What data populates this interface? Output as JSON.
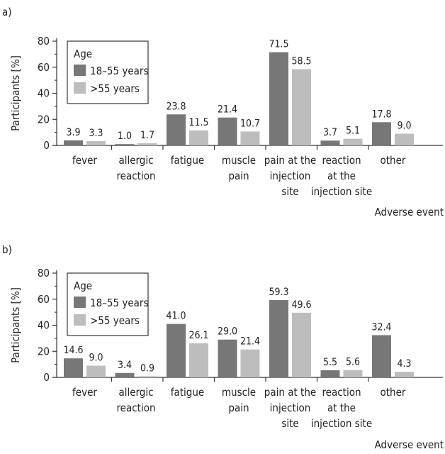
{
  "colors": {
    "series_dark": "#777777",
    "series_light": "#bdbdbd",
    "axis": "#333333"
  },
  "chart_data": [
    {
      "type": "bar",
      "panel_label": "a)",
      "categories": [
        [
          "fever"
        ],
        [
          "allergic",
          "reaction"
        ],
        [
          "fatigue"
        ],
        [
          "muscle",
          "pain"
        ],
        [
          "pain at the",
          "injection",
          "site"
        ],
        [
          "reaction",
          "at the",
          "injection site"
        ],
        [
          "other"
        ]
      ],
      "series": [
        {
          "name": "18–55 years",
          "values": [
            3.9,
            1.0,
            23.8,
            21.4,
            71.5,
            3.7,
            17.8
          ],
          "labels": [
            "3.9",
            "1.0",
            "23.8",
            "21.4",
            "71.5",
            "3.7",
            "17.8"
          ]
        },
        {
          "name": ">55 years",
          "values": [
            3.3,
            1.7,
            11.5,
            10.7,
            58.5,
            5.1,
            9.0
          ],
          "labels": [
            "3.3",
            "1.7",
            "11.5",
            "10.7",
            "58.5",
            "5.1",
            "9.0"
          ]
        }
      ],
      "legend_title": "Age",
      "xlabel": "Adverse event",
      "ylabel": "Participants [%]",
      "ylim": [
        0,
        80
      ],
      "yticks": [
        "0",
        "20",
        "40",
        "60",
        "80"
      ],
      "grid": false,
      "legend_position": "top-left"
    },
    {
      "type": "bar",
      "panel_label": "b)",
      "categories": [
        [
          "fever"
        ],
        [
          "allergic",
          "reaction"
        ],
        [
          "fatigue"
        ],
        [
          "muscle",
          "pain"
        ],
        [
          "pain at the",
          "injection",
          "site"
        ],
        [
          "reaction",
          "at the",
          "injection site"
        ],
        [
          "other"
        ]
      ],
      "series": [
        {
          "name": "18–55 years",
          "values": [
            14.6,
            3.4,
            41.0,
            29.0,
            59.3,
            5.5,
            32.4
          ],
          "labels": [
            "14.6",
            "3.4",
            "41.0",
            "29.0",
            "59.3",
            "5.5",
            "32.4"
          ]
        },
        {
          "name": ">55 years",
          "values": [
            9.0,
            0.9,
            26.1,
            21.4,
            49.6,
            5.6,
            4.3
          ],
          "labels": [
            "9.0",
            "0.9",
            "26.1",
            "21.4",
            "49.6",
            "5.6",
            "4.3"
          ]
        }
      ],
      "legend_title": "Age",
      "xlabel": "Adverse event",
      "ylabel": "Participants [%]",
      "ylim": [
        0,
        80
      ],
      "yticks": [
        "0",
        "20",
        "40",
        "60",
        "80"
      ],
      "grid": false,
      "legend_position": "top-left"
    }
  ]
}
